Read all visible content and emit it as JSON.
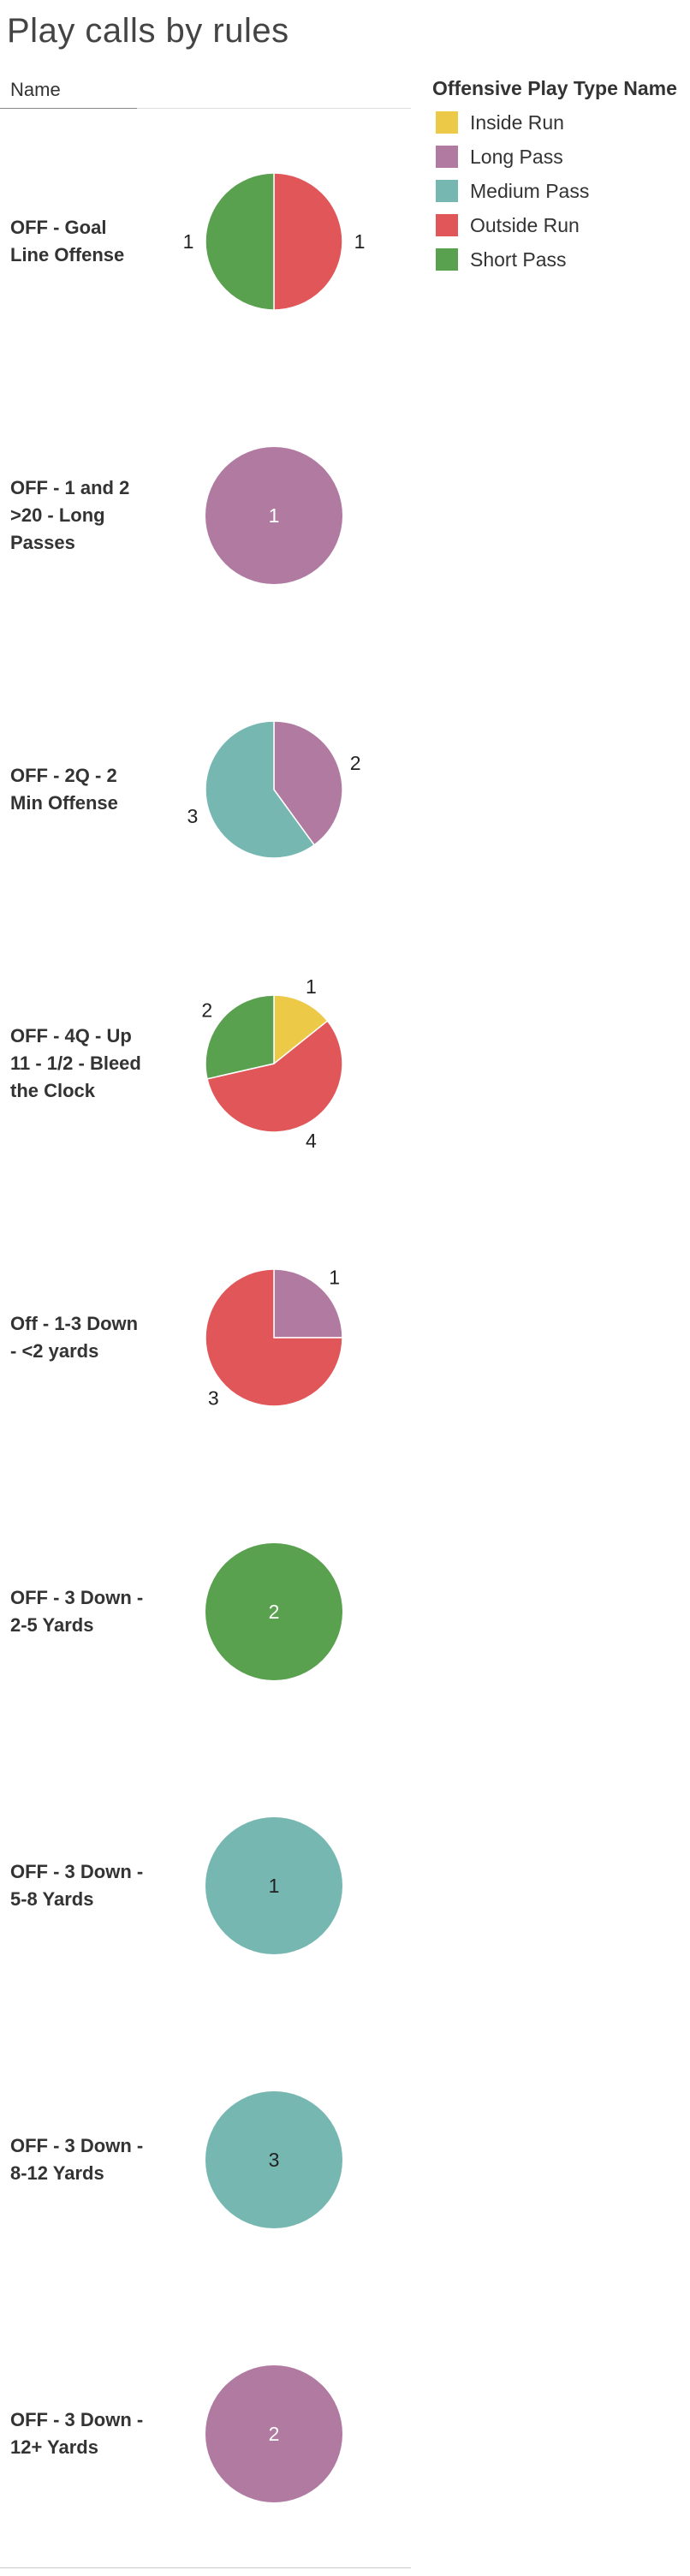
{
  "header": {
    "title": "Play calls by rules",
    "column_header": "Name"
  },
  "legend": {
    "title": "Offensive Play Type Name",
    "items": [
      {
        "label": "Inside Run",
        "color": "#EDC948"
      },
      {
        "label": "Long Pass",
        "color": "#B07AA1"
      },
      {
        "label": "Medium Pass",
        "color": "#76B7B2"
      },
      {
        "label": "Outside Run",
        "color": "#E15759"
      },
      {
        "label": "Short Pass",
        "color": "#59A14F"
      }
    ]
  },
  "chart_data": {
    "type": "pie",
    "title": "Play calls by rules",
    "legend_position": "top-right",
    "series_names": [
      "Inside Run",
      "Long Pass",
      "Medium Pass",
      "Outside Run",
      "Short Pass"
    ],
    "rows": [
      {
        "name": "OFF - Goal Line Offense",
        "slices": [
          {
            "type": "Outside Run",
            "value": 1
          },
          {
            "type": "Short Pass",
            "value": 1
          }
        ]
      },
      {
        "name": "OFF - 1 and 2 >20 - Long Passes",
        "slices": [
          {
            "type": "Long Pass",
            "value": 1
          }
        ]
      },
      {
        "name": "OFF - 2Q - 2 Min Offense",
        "slices": [
          {
            "type": "Long Pass",
            "value": 2
          },
          {
            "type": "Medium Pass",
            "value": 3
          }
        ]
      },
      {
        "name": "OFF - 4Q - Up 11 - 1/2 - Bleed the Clock",
        "slices": [
          {
            "type": "Inside Run",
            "value": 1
          },
          {
            "type": "Outside Run",
            "value": 4
          },
          {
            "type": "Short Pass",
            "value": 2
          }
        ]
      },
      {
        "name": "Off - 1-3 Down - <2 yards",
        "slices": [
          {
            "type": "Long Pass",
            "value": 1
          },
          {
            "type": "Outside Run",
            "value": 3
          }
        ]
      },
      {
        "name": "OFF - 3 Down - 2-5 Yards",
        "slices": [
          {
            "type": "Short Pass",
            "value": 2
          }
        ]
      },
      {
        "name": "OFF - 3 Down - 5-8 Yards",
        "slices": [
          {
            "type": "Medium Pass",
            "value": 1
          }
        ]
      },
      {
        "name": "OFF - 3 Down - 8-12 Yards",
        "slices": [
          {
            "type": "Medium Pass",
            "value": 3
          }
        ]
      },
      {
        "name": "OFF - 3 Down - 12+ Yards",
        "slices": [
          {
            "type": "Long Pass",
            "value": 2
          }
        ]
      }
    ]
  }
}
